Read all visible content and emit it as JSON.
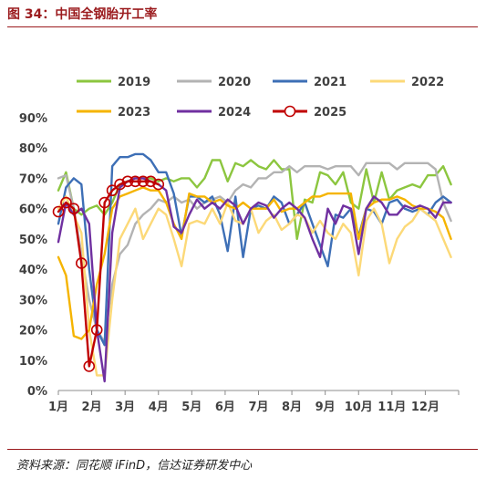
{
  "figure": {
    "title": "图 34：中国全钢胎开工率",
    "source": "资料来源：同花顺 iFinD，信达证券研发中心"
  },
  "chart_data": {
    "type": "line",
    "y_ticks": [
      "90%",
      "80%",
      "70%",
      "60%",
      "50%",
      "40%",
      "30%",
      "20%",
      "10%",
      "0%"
    ],
    "ylim": [
      0,
      0.9
    ],
    "x_ticks": [
      "1月",
      "2月",
      "3月",
      "4月",
      "5月",
      "6月",
      "7月",
      "8月",
      "9月",
      "10月",
      "11月",
      "12月"
    ],
    "xlim": [
      0,
      52
    ],
    "legend_position": "top",
    "series": [
      {
        "name": "2019",
        "color": "#8cc63f",
        "marker": false,
        "width": 2.4,
        "x": [
          0,
          1,
          2,
          3,
          4,
          5,
          6,
          7,
          8,
          9,
          10,
          11,
          12,
          13,
          14,
          15,
          16,
          17,
          18,
          19,
          20,
          21,
          22,
          23,
          24,
          25,
          26,
          27,
          28,
          29,
          30,
          31,
          32,
          33,
          34,
          35,
          36,
          37,
          38,
          39,
          40,
          41,
          42,
          43,
          44,
          45,
          46,
          47,
          48,
          49,
          50,
          51
        ],
        "y": [
          0.66,
          0.72,
          0.6,
          0.58,
          0.6,
          0.61,
          0.58,
          0.62,
          0.68,
          0.69,
          0.7,
          0.7,
          0.7,
          0.69,
          0.7,
          0.69,
          0.7,
          0.7,
          0.67,
          0.7,
          0.76,
          0.76,
          0.69,
          0.75,
          0.74,
          0.76,
          0.74,
          0.73,
          0.76,
          0.73,
          0.73,
          0.5,
          0.63,
          0.62,
          0.72,
          0.71,
          0.68,
          0.72,
          0.62,
          0.6,
          0.73,
          0.62,
          0.72,
          0.63,
          0.66,
          0.67,
          0.68,
          0.67,
          0.71,
          0.71,
          0.74,
          0.68
        ]
      },
      {
        "name": "2020",
        "color": "#b3b3b3",
        "marker": false,
        "width": 2.4,
        "x": [
          0,
          1,
          2,
          3,
          4,
          5,
          6,
          7,
          8,
          9,
          10,
          11,
          12,
          13,
          14,
          15,
          16,
          17,
          18,
          19,
          20,
          21,
          22,
          23,
          24,
          25,
          26,
          27,
          28,
          29,
          30,
          31,
          32,
          33,
          34,
          35,
          36,
          37,
          38,
          39,
          40,
          41,
          42,
          43,
          44,
          45,
          46,
          47,
          48,
          49,
          50,
          51
        ],
        "y": [
          0.7,
          0.71,
          0.6,
          0.45,
          0.3,
          0.2,
          0.16,
          0.35,
          0.45,
          0.48,
          0.55,
          0.58,
          0.6,
          0.63,
          0.62,
          0.64,
          0.62,
          0.63,
          0.6,
          0.62,
          0.63,
          0.64,
          0.62,
          0.66,
          0.68,
          0.67,
          0.7,
          0.7,
          0.72,
          0.72,
          0.74,
          0.72,
          0.74,
          0.74,
          0.74,
          0.73,
          0.74,
          0.74,
          0.74,
          0.71,
          0.75,
          0.75,
          0.75,
          0.75,
          0.73,
          0.75,
          0.75,
          0.75,
          0.75,
          0.73,
          0.62,
          0.56
        ]
      },
      {
        "name": "2021",
        "color": "#3d6fb6",
        "marker": false,
        "width": 2.4,
        "x": [
          0,
          1,
          2,
          3,
          4,
          5,
          6,
          7,
          8,
          9,
          10,
          11,
          12,
          13,
          14,
          15,
          16,
          17,
          18,
          19,
          20,
          21,
          22,
          23,
          24,
          25,
          26,
          27,
          28,
          29,
          30,
          31,
          32,
          33,
          34,
          35,
          36,
          37,
          38,
          39,
          40,
          41,
          42,
          43,
          44,
          45,
          46,
          47,
          48,
          49,
          50,
          51
        ],
        "y": [
          0.55,
          0.67,
          0.7,
          0.68,
          0.4,
          0.2,
          0.15,
          0.74,
          0.77,
          0.77,
          0.78,
          0.78,
          0.76,
          0.72,
          0.72,
          0.65,
          0.51,
          0.64,
          0.64,
          0.62,
          0.64,
          0.58,
          0.46,
          0.64,
          0.44,
          0.6,
          0.61,
          0.6,
          0.64,
          0.62,
          0.55,
          0.58,
          0.62,
          0.55,
          0.48,
          0.41,
          0.58,
          0.57,
          0.6,
          0.51,
          0.6,
          0.59,
          0.55,
          0.62,
          0.63,
          0.6,
          0.59,
          0.6,
          0.58,
          0.62,
          0.64,
          0.62
        ]
      },
      {
        "name": "2022",
        "color": "#fcd978",
        "marker": false,
        "width": 2.4,
        "x": [
          0,
          1,
          2,
          3,
          4,
          5,
          6,
          7,
          8,
          9,
          10,
          11,
          12,
          13,
          14,
          15,
          16,
          17,
          18,
          19,
          20,
          21,
          22,
          23,
          24,
          25,
          26,
          27,
          28,
          29,
          30,
          31,
          32,
          33,
          34,
          35,
          36,
          37,
          38,
          39,
          40,
          41,
          42,
          43,
          44,
          45,
          46,
          47,
          48,
          49,
          50,
          51
        ],
        "y": [
          0.6,
          0.64,
          0.58,
          0.52,
          0.2,
          0.05,
          0.05,
          0.3,
          0.5,
          0.55,
          0.6,
          0.5,
          0.55,
          0.6,
          0.58,
          0.5,
          0.41,
          0.55,
          0.56,
          0.55,
          0.6,
          0.55,
          0.62,
          0.56,
          0.55,
          0.6,
          0.52,
          0.56,
          0.58,
          0.53,
          0.55,
          0.58,
          0.57,
          0.52,
          0.56,
          0.52,
          0.5,
          0.55,
          0.52,
          0.38,
          0.56,
          0.6,
          0.55,
          0.42,
          0.5,
          0.54,
          0.56,
          0.6,
          0.58,
          0.56,
          0.5,
          0.44
        ]
      },
      {
        "name": "2023",
        "color": "#f5b400",
        "marker": false,
        "width": 2.4,
        "x": [
          0,
          1,
          2,
          3,
          4,
          5,
          6,
          7,
          8,
          9,
          10,
          11,
          12,
          13,
          14,
          15,
          16,
          17,
          18,
          19,
          20,
          21,
          22,
          23,
          24,
          25,
          26,
          27,
          28,
          29,
          30,
          31,
          32,
          33,
          34,
          35,
          36,
          37,
          38,
          39,
          40,
          41,
          42,
          43,
          44,
          45,
          46,
          47,
          48,
          49,
          50,
          51
        ],
        "y": [
          0.44,
          0.38,
          0.18,
          0.17,
          0.2,
          0.35,
          0.45,
          0.6,
          0.64,
          0.65,
          0.66,
          0.67,
          0.66,
          0.66,
          0.62,
          0.55,
          0.5,
          0.65,
          0.64,
          0.64,
          0.62,
          0.63,
          0.61,
          0.6,
          0.62,
          0.6,
          0.6,
          0.6,
          0.63,
          0.59,
          0.6,
          0.6,
          0.62,
          0.64,
          0.64,
          0.65,
          0.65,
          0.65,
          0.65,
          0.5,
          0.6,
          0.62,
          0.63,
          0.63,
          0.64,
          0.63,
          0.61,
          0.6,
          0.6,
          0.59,
          0.57,
          0.5
        ]
      },
      {
        "name": "2024",
        "color": "#7030a0",
        "marker": false,
        "width": 2.4,
        "x": [
          0,
          1,
          2,
          3,
          4,
          5,
          6,
          7,
          8,
          9,
          10,
          11,
          12,
          13,
          14,
          15,
          16,
          17,
          18,
          19,
          20,
          21,
          22,
          23,
          24,
          25,
          26,
          27,
          28,
          29,
          30,
          31,
          32,
          33,
          34,
          35,
          36,
          37,
          38,
          39,
          40,
          41,
          42,
          43,
          44,
          45,
          46,
          47,
          48,
          49,
          50,
          51
        ],
        "y": [
          0.49,
          0.62,
          0.58,
          0.6,
          0.55,
          0.2,
          0.03,
          0.52,
          0.67,
          0.69,
          0.7,
          0.7,
          0.69,
          0.68,
          0.66,
          0.54,
          0.52,
          0.58,
          0.63,
          0.6,
          0.62,
          0.6,
          0.63,
          0.61,
          0.55,
          0.6,
          0.62,
          0.61,
          0.57,
          0.6,
          0.62,
          0.6,
          0.57,
          0.5,
          0.44,
          0.6,
          0.55,
          0.61,
          0.6,
          0.45,
          0.6,
          0.64,
          0.62,
          0.58,
          0.58,
          0.61,
          0.6,
          0.61,
          0.6,
          0.57,
          0.62,
          0.62
        ]
      },
      {
        "name": "2025",
        "color": "#c00000",
        "marker": true,
        "width": 2.4,
        "x": [
          0,
          1,
          2,
          3,
          4,
          5,
          6,
          7,
          8,
          9,
          10,
          11,
          12,
          13
        ],
        "y": [
          0.59,
          0.62,
          0.6,
          0.42,
          0.08,
          0.2,
          0.62,
          0.66,
          0.68,
          0.69,
          0.69,
          0.69,
          0.69,
          0.68
        ]
      }
    ]
  }
}
